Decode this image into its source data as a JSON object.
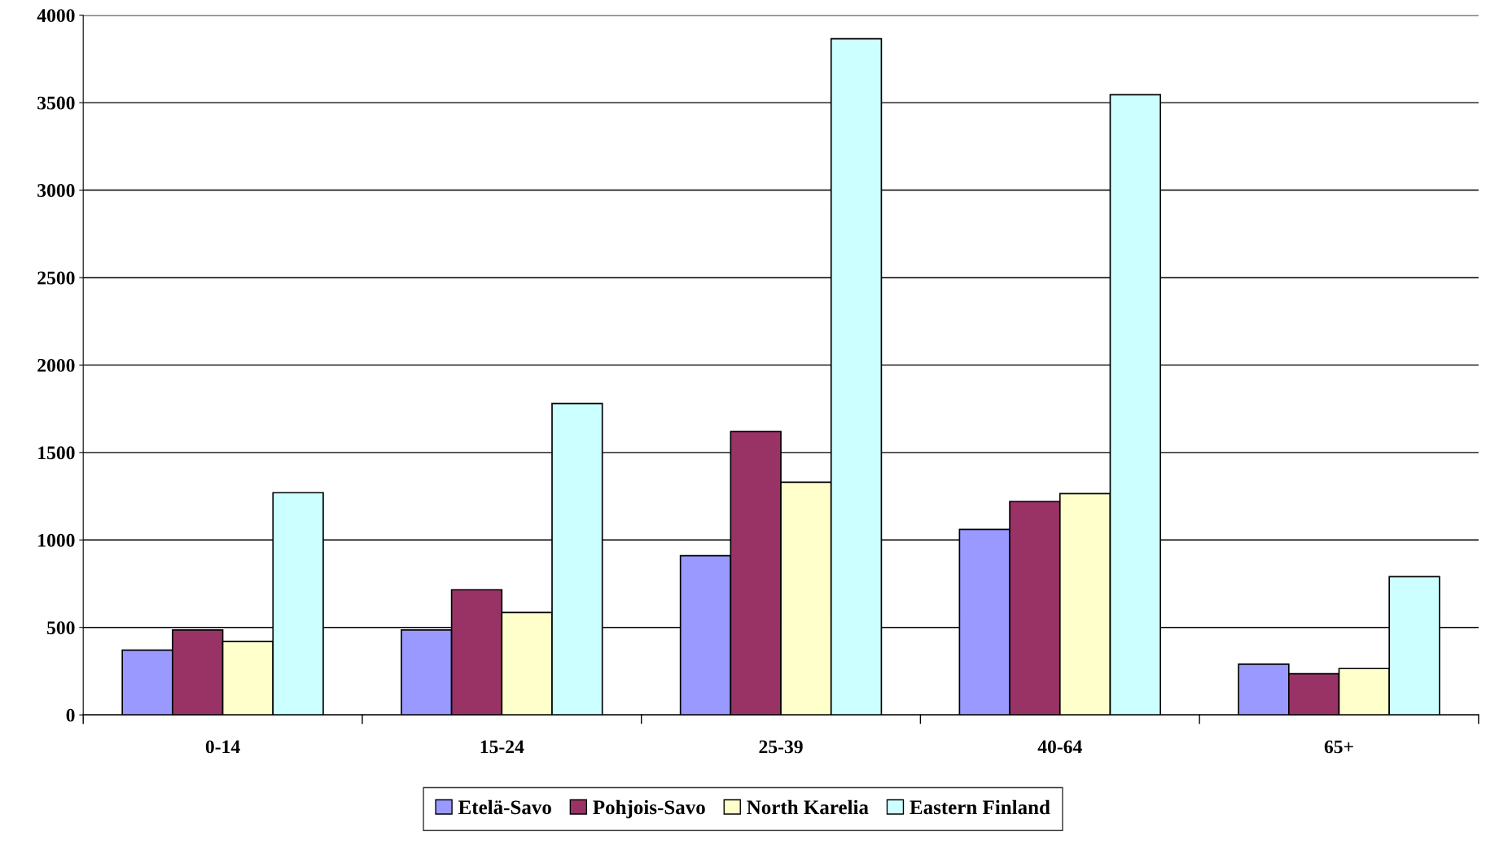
{
  "chart_data": {
    "type": "bar",
    "categories": [
      "0-14",
      "15-24",
      "25-39",
      "40-64",
      "65+"
    ],
    "series": [
      {
        "name": "Etelä-Savo",
        "color": "#9999ff",
        "values": [
          370,
          485,
          910,
          1060,
          290
        ]
      },
      {
        "name": "Pohjois-Savo",
        "color": "#993366",
        "values": [
          485,
          715,
          1620,
          1220,
          235
        ]
      },
      {
        "name": "North Karelia",
        "color": "#ffffcc",
        "values": [
          420,
          585,
          1330,
          1265,
          265
        ]
      },
      {
        "name": "Eastern Finland",
        "color": "#ccffff",
        "values": [
          1270,
          1780,
          3865,
          3545,
          790
        ]
      }
    ],
    "ylim": [
      0,
      4000
    ],
    "yticks": [
      0,
      500,
      1000,
      1500,
      2000,
      2500,
      3000,
      3500,
      4000
    ],
    "grid": "y",
    "legend": "bottom"
  }
}
